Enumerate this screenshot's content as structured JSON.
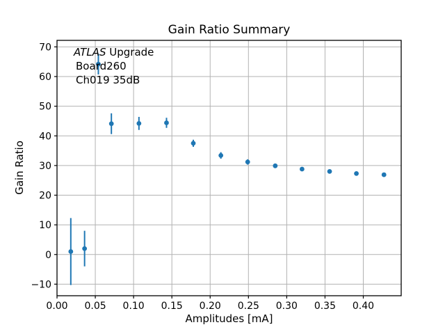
{
  "figure": {
    "background": "#ffffff"
  },
  "chart_data": {
    "type": "scatter",
    "title": "Gain Ratio Summary",
    "xlabel": "Amplitudes [mA]",
    "ylabel": "Gain Ratio",
    "annotation": {
      "line1_italic": "ATLAS",
      "line1_rest": " Upgrade",
      "line2": "Board260",
      "line3": "Ch019 35dB"
    },
    "marker_color": "#1f77b4",
    "grid": true,
    "grid_color": "#b2b2b2",
    "spine_color": "#000000",
    "xlim": [
      0.0,
      0.4495
    ],
    "ylim": [
      -13.9,
      72.2
    ],
    "xticks": {
      "values": [
        0.0,
        0.05,
        0.1,
        0.15,
        0.2,
        0.25,
        0.3,
        0.35,
        0.4
      ],
      "labels": [
        "0.00",
        "0.05",
        "0.10",
        "0.15",
        "0.20",
        "0.25",
        "0.30",
        "0.35",
        "0.40"
      ]
    },
    "yticks": {
      "values": [
        -10,
        0,
        10,
        20,
        30,
        40,
        50,
        60,
        70
      ],
      "labels": [
        "−10",
        "0",
        "10",
        "20",
        "30",
        "40",
        "50",
        "60",
        "70"
      ]
    },
    "legend": "none",
    "series": [
      {
        "name": "gain-ratio-points",
        "x": [
          0.018,
          0.036,
          0.054,
          0.071,
          0.107,
          0.143,
          0.178,
          0.214,
          0.249,
          0.285,
          0.32,
          0.356,
          0.391,
          0.427
        ],
        "y": [
          1.0,
          2.0,
          64.2,
          44.1,
          44.2,
          44.4,
          37.5,
          33.4,
          31.2,
          29.9,
          28.8,
          28.0,
          27.3,
          26.9
        ],
        "yerr": [
          11.3,
          6.0,
          3.5,
          3.5,
          2.2,
          1.7,
          1.2,
          1.1,
          0.9,
          0.7,
          0.6,
          0.6,
          0.5,
          0.5
        ]
      }
    ]
  }
}
